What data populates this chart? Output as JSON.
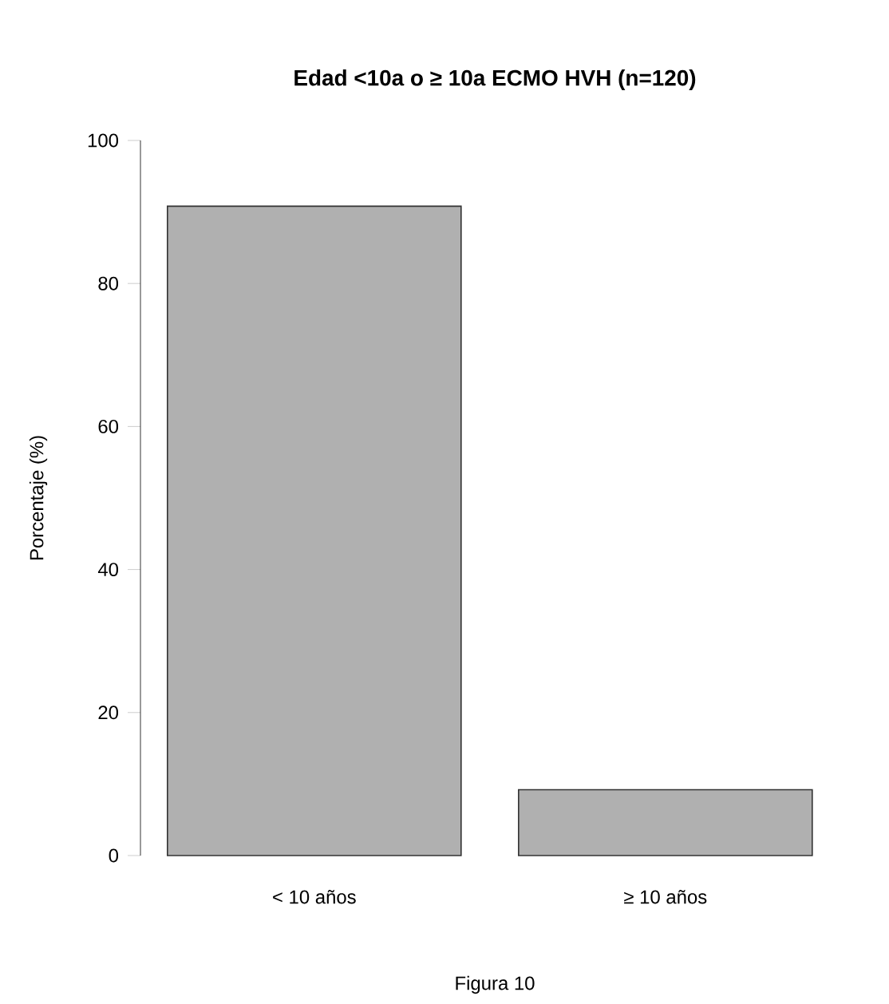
{
  "chart_data": {
    "type": "bar",
    "title": "Edad <10a o ≥ 10a  ECMO HVH (n=120)",
    "ylabel": "Porcentaje (%)",
    "categories": [
      "< 10 años",
      "≥ 10 años"
    ],
    "values": [
      90.8,
      9.2
    ],
    "color": "#b0b0b0",
    "ylim": [
      0,
      100
    ],
    "yticks": [
      0,
      20,
      40,
      60,
      80,
      100
    ],
    "annotations": [
      "Figura 10"
    ]
  }
}
